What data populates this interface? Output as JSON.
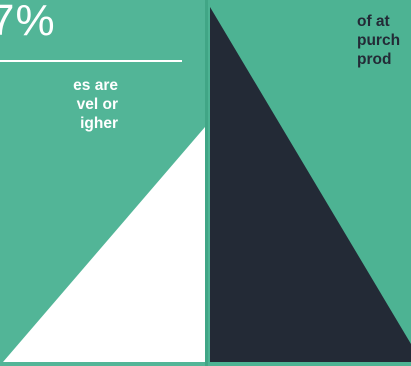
{
  "left_stat": {
    "value": "7%",
    "caption_lines": [
      "es are",
      "vel or",
      "igher"
    ]
  },
  "right_stat": {
    "caption_lines": [
      "of at",
      "purch",
      "prod"
    ]
  },
  "colors": {
    "background": "#4db393",
    "light_triangle": "#ffffff",
    "dark_triangle": "#232a36",
    "text_light": "#ffffff",
    "text_dark": "#232a36"
  }
}
